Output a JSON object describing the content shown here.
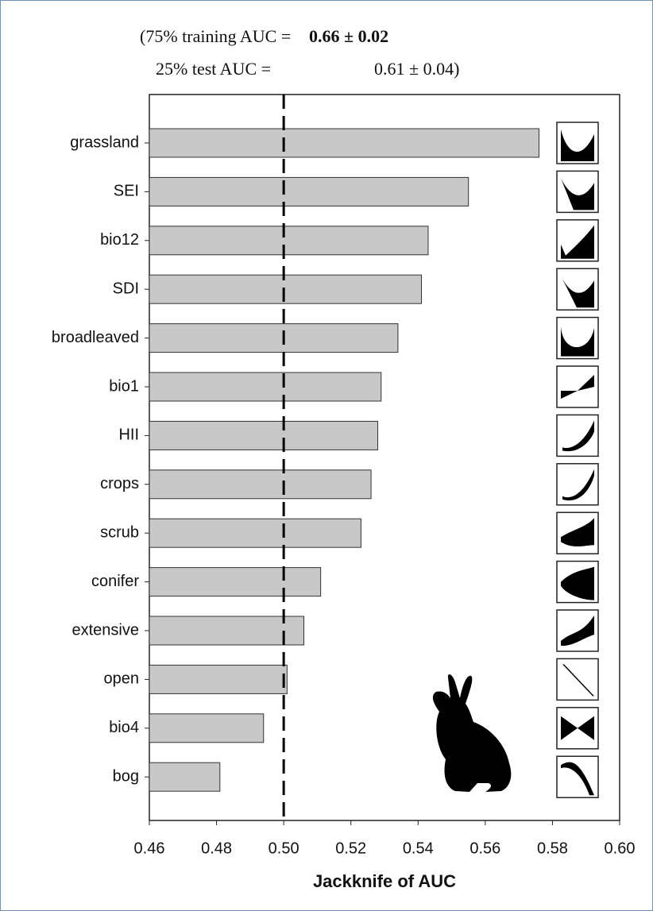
{
  "chart_data": {
    "type": "bar",
    "orientation": "horizontal",
    "annotation_lines": [
      {
        "label": "(75% training AUC = ",
        "value": "0.66 ± 0.02"
      },
      {
        "label": "25% test AUC =",
        "value": "0.61 ± 0.04)"
      }
    ],
    "xlabel": "Jackknife of AUC",
    "categories": [
      "grassland",
      "SEI",
      "bio12",
      "SDI",
      "broadleaved",
      "bio1",
      "HII",
      "crops",
      "scrub",
      "conifer",
      "extensive",
      "open",
      "bio4",
      "bog"
    ],
    "values": [
      0.576,
      0.555,
      0.543,
      0.541,
      0.534,
      0.529,
      0.528,
      0.526,
      0.523,
      0.511,
      0.506,
      0.501,
      0.494,
      0.481
    ],
    "color": "#c8c8c8",
    "xlim": [
      0.46,
      0.6
    ],
    "xticks": [
      0.46,
      0.48,
      {
        "value": 0.5,
        "label": "0.50"
      },
      0.52,
      0.54,
      0.56,
      0.58,
      {
        "value": 0.6,
        "label": "0.60"
      }
    ],
    "reference_line": 0.5,
    "grid": false
  }
}
